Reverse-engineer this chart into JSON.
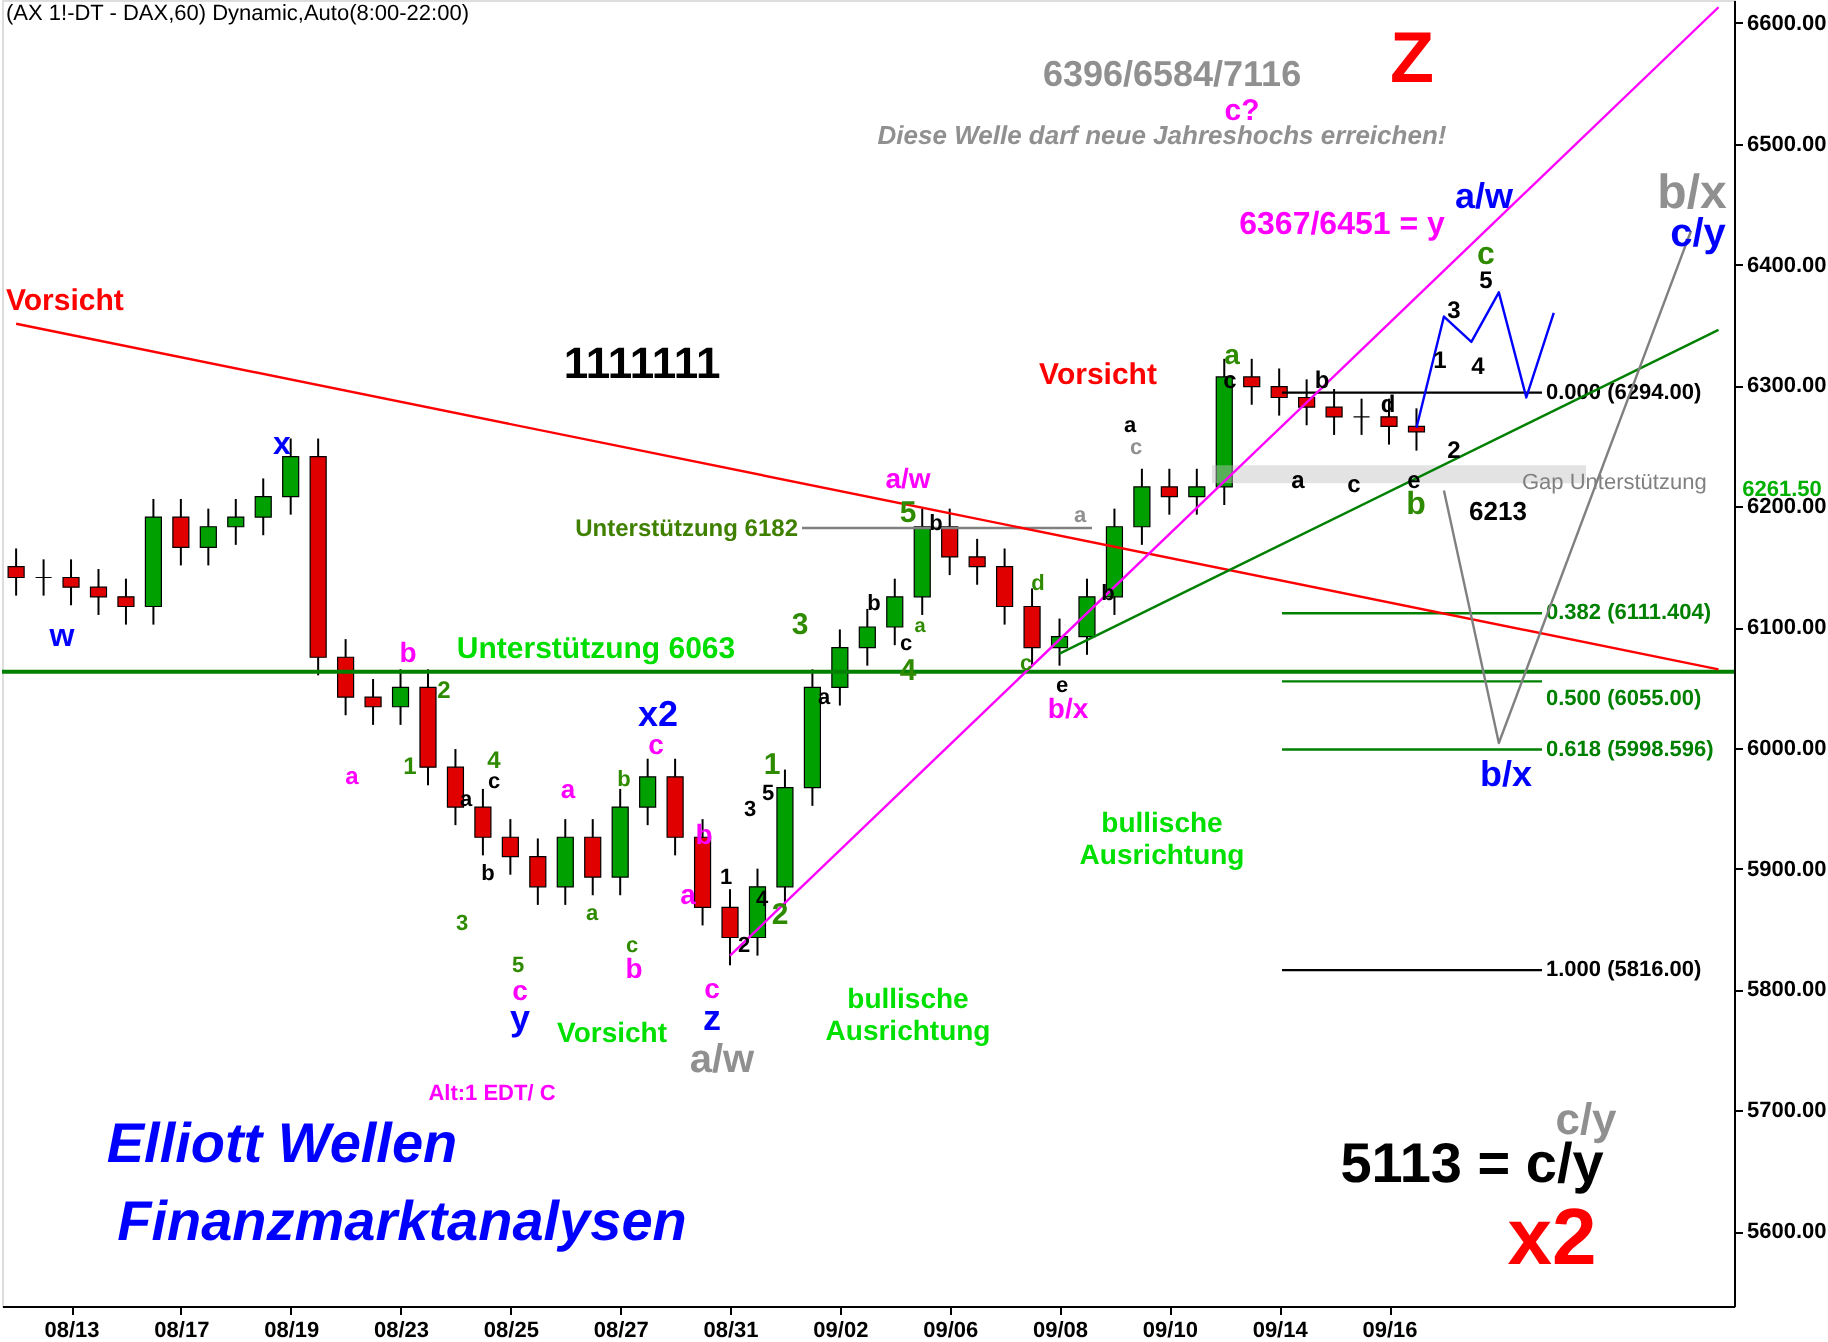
{
  "chart_data": {
    "type": "candlestick",
    "title": "(AX 1!-DT - DAX,60) Dynamic,Auto(8:00-22:00)",
    "categories": [
      null,
      null,
      "08/13",
      null,
      null,
      null,
      "08/17",
      null,
      null,
      null,
      "08/19",
      null,
      null,
      null,
      "08/23",
      null,
      null,
      null,
      "08/25",
      null,
      null,
      null,
      "08/27",
      null,
      null,
      null,
      "08/31",
      null,
      null,
      null,
      "09/02",
      null,
      null,
      null,
      "09/06",
      null,
      null,
      null,
      "09/08",
      null,
      null,
      null,
      "09/10",
      null,
      null,
      null,
      "09/14",
      null,
      null,
      null,
      "09/16",
      null,
      null,
      null,
      null,
      null,
      null,
      null,
      null,
      null,
      null,
      null,
      null
    ],
    "ohlc": [
      [
        6150,
        6165,
        6126,
        6141
      ],
      [
        6141,
        6156,
        6126,
        6141
      ],
      [
        6141,
        6156,
        6118,
        6133
      ],
      [
        6133,
        6148,
        6110,
        6125
      ],
      [
        6125,
        6140,
        6102,
        6117
      ],
      [
        6117,
        6206,
        6102,
        6191
      ],
      [
        6191,
        6206,
        6151,
        6166
      ],
      [
        6166,
        6198,
        6151,
        6183
      ],
      [
        6183,
        6206,
        6168,
        6191
      ],
      [
        6191,
        6223,
        6176,
        6208
      ],
      [
        6208,
        6256,
        6193,
        6241
      ],
      [
        6241,
        6256,
        6060,
        6075
      ],
      [
        6075,
        6090,
        6027,
        6042
      ],
      [
        6042,
        6057,
        6019,
        6034
      ],
      [
        6034,
        6065,
        6019,
        6050
      ],
      [
        6050,
        6065,
        5969,
        5984
      ],
      [
        5984,
        5999,
        5936,
        5951
      ],
      [
        5951,
        5966,
        5911,
        5926
      ],
      [
        5926,
        5941,
        5895,
        5910
      ],
      [
        5910,
        5925,
        5870,
        5885
      ],
      [
        5885,
        5941,
        5870,
        5926
      ],
      [
        5926,
        5941,
        5878,
        5893
      ],
      [
        5893,
        5966,
        5878,
        5951
      ],
      [
        5951,
        5991,
        5936,
        5976
      ],
      [
        5976,
        5991,
        5911,
        5926
      ],
      [
        5926,
        5941,
        5853,
        5868
      ],
      [
        5868,
        5883,
        5820,
        5843
      ],
      [
        5843,
        5900,
        5828,
        5885
      ],
      [
        5885,
        5982,
        5870,
        5967
      ],
      [
        5967,
        6065,
        5952,
        6050
      ],
      [
        6050,
        6098,
        6035,
        6083
      ],
      [
        6083,
        6115,
        6068,
        6100
      ],
      [
        6100,
        6140,
        6085,
        6125
      ],
      [
        6125,
        6198,
        6110,
        6183
      ],
      [
        6183,
        6198,
        6143,
        6158
      ],
      [
        6158,
        6173,
        6135,
        6150
      ],
      [
        6150,
        6165,
        6102,
        6117
      ],
      [
        6117,
        6132,
        6068,
        6083
      ],
      [
        6083,
        6107,
        6068,
        6092
      ],
      [
        6092,
        6140,
        6077,
        6125
      ],
      [
        6125,
        6198,
        6110,
        6183
      ],
      [
        6183,
        6231,
        6168,
        6216
      ],
      [
        6216,
        6231,
        6193,
        6208
      ],
      [
        6208,
        6231,
        6193,
        6216
      ],
      [
        6216,
        6322,
        6201,
        6307
      ],
      [
        6307,
        6322,
        6284,
        6299
      ],
      [
        6299,
        6314,
        6275,
        6290
      ],
      [
        6290,
        6305,
        6267,
        6282
      ],
      [
        6282,
        6297,
        6259,
        6274
      ],
      [
        6274,
        6289,
        6259,
        6274
      ],
      [
        6274,
        6289,
        6251,
        6266
      ],
      [
        6266,
        6281,
        6246,
        6261.5
      ],
      null,
      null,
      null,
      null,
      null,
      null,
      null,
      null,
      null,
      null,
      null
    ],
    "ylim": [
      5538,
      6619
    ],
    "yticks": [
      {
        "value": 5600,
        "label": "5600.00"
      },
      {
        "value": 5700,
        "label": "5700.00"
      },
      {
        "value": 5800,
        "label": "5800.00"
      },
      {
        "value": 5900,
        "label": "5900.00"
      },
      {
        "value": 6000,
        "label": "6000.00"
      },
      {
        "value": 6100,
        "label": "6100.00"
      },
      {
        "value": 6200,
        "label": "6200.00"
      },
      {
        "value": 6300,
        "label": "6300.00"
      },
      {
        "value": 6400,
        "label": "6400.00"
      },
      {
        "value": 6500,
        "label": "6500.00"
      },
      {
        "value": 6600,
        "label": "6600.00"
      }
    ],
    "series": [
      {
        "type": "line",
        "color": "#ff0000",
        "values": [
          6351,
          null,
          null,
          null,
          null,
          null,
          null,
          null,
          null,
          null,
          null,
          null,
          null,
          null,
          null,
          null,
          null,
          null,
          null,
          null,
          null,
          null,
          null,
          null,
          null,
          null,
          null,
          null,
          null,
          null,
          null,
          null,
          null,
          null,
          null,
          null,
          null,
          null,
          null,
          null,
          null,
          null,
          null,
          null,
          null,
          null,
          null,
          null,
          null,
          null,
          null,
          null,
          null,
          null,
          null,
          null,
          null,
          null,
          null,
          null,
          null,
          null,
          6065
        ]
      },
      {
        "type": "line",
        "color": "#ff00ff",
        "values": [
          null,
          null,
          null,
          null,
          null,
          null,
          null,
          null,
          null,
          null,
          null,
          null,
          null,
          null,
          null,
          null,
          null,
          null,
          null,
          null,
          null,
          null,
          null,
          null,
          null,
          null,
          5828,
          null,
          null,
          null,
          null,
          null,
          null,
          null,
          null,
          null,
          null,
          null,
          null,
          null,
          null,
          null,
          null,
          null,
          null,
          null,
          null,
          null,
          null,
          null,
          null,
          null,
          null,
          null,
          null,
          null,
          null,
          null,
          null,
          null,
          null,
          null,
          6613
        ]
      },
      {
        "type": "line",
        "color": "#008000",
        "values": [
          null,
          null,
          null,
          null,
          null,
          null,
          null,
          null,
          null,
          null,
          null,
          null,
          null,
          null,
          null,
          null,
          null,
          null,
          null,
          null,
          null,
          null,
          null,
          null,
          null,
          null,
          null,
          null,
          null,
          null,
          null,
          null,
          null,
          null,
          null,
          null,
          null,
          null,
          6078,
          null,
          null,
          null,
          null,
          null,
          null,
          null,
          null,
          null,
          null,
          null,
          null,
          null,
          null,
          null,
          null,
          null,
          null,
          null,
          null,
          null,
          null,
          null,
          6346
        ]
      },
      {
        "type": "line",
        "color": "#808080",
        "values": [
          null,
          null,
          null,
          null,
          null,
          null,
          null,
          null,
          null,
          null,
          null,
          null,
          null,
          null,
          null,
          null,
          null,
          null,
          null,
          null,
          null,
          null,
          null,
          null,
          null,
          null,
          null,
          null,
          null,
          null,
          null,
          null,
          null,
          null,
          null,
          null,
          null,
          null,
          null,
          null,
          null,
          null,
          null,
          null,
          null,
          null,
          null,
          null,
          null,
          null,
          null,
          null,
          6213,
          null,
          6004,
          null,
          null,
          null,
          null,
          null,
          null,
          6428,
          null
        ]
      },
      {
        "type": "line",
        "color": "#0000ff",
        "values": [
          null,
          null,
          null,
          null,
          null,
          null,
          null,
          null,
          null,
          null,
          null,
          null,
          null,
          null,
          null,
          null,
          null,
          null,
          null,
          null,
          null,
          null,
          null,
          null,
          null,
          null,
          null,
          null,
          null,
          null,
          null,
          null,
          null,
          null,
          null,
          null,
          null,
          null,
          null,
          null,
          null,
          null,
          null,
          null,
          null,
          null,
          null,
          null,
          null,
          null,
          null,
          6265,
          6357,
          6336,
          6377,
          6290,
          6360,
          null,
          null,
          null,
          null,
          null,
          null
        ]
      }
    ],
    "ref_lines": [
      {
        "axis": "y",
        "value": 6063,
        "label": "Unterstützung 6063",
        "color": "#008000"
      },
      {
        "axis": "y",
        "value": 6182,
        "label": "Unterstützung 6182",
        "color": "#808080"
      },
      {
        "axis": "y",
        "value": 6294,
        "label": "0.000 (6294.00)",
        "color": "#000000"
      },
      {
        "axis": "y",
        "value": 6111.404,
        "label": "0.382 (6111.404)",
        "color": "#008000"
      },
      {
        "axis": "y",
        "value": 6055,
        "label": "0.500 (6055.00)",
        "color": "#008000"
      },
      {
        "axis": "y",
        "value": 5998.596,
        "label": "0.618 (5998.596)",
        "color": "#008000"
      },
      {
        "axis": "y",
        "value": 5816,
        "label": "1.000 (5816.00)",
        "color": "#000000"
      }
    ],
    "bands": [
      {
        "axis": "y",
        "from": 6219,
        "to": 6234,
        "label": "Gap Unterstützung",
        "color": "#c0c0c0"
      }
    ],
    "annotations": [
      "Elliott Wellen",
      "Finanzmarktanalysen",
      "Alt:1 EDT/ C",
      "6396/6584/7116",
      "c?",
      "Diese Welle darf neue Jahreshochs  erreichen!",
      "Z",
      "Vorsicht",
      "Vorsicht",
      "1111111",
      "w",
      "x",
      "b",
      "2",
      "a",
      "1",
      "a",
      "4",
      "c",
      "b",
      "3",
      "5",
      "c",
      "y",
      "a",
      "a",
      "b",
      "x2",
      "c",
      "b",
      "a",
      "c",
      "b",
      "1",
      "2",
      "3",
      "5",
      "4",
      "1",
      "2",
      "c",
      "z",
      "a/w",
      "3",
      "a",
      "4",
      "c",
      "b",
      "5",
      "a/w",
      "a",
      "b",
      "d",
      "c",
      "a",
      "b",
      "e",
      "b/x",
      "a",
      "c",
      "a",
      "c",
      "b",
      "a",
      "c",
      "d",
      "e",
      "b",
      "1",
      "2",
      "3",
      "4",
      "5",
      "c",
      "6367/6451 = y",
      "a/w",
      "b/x",
      "c/y",
      "b/x",
      "6213",
      "Vorsicht",
      "bullische\nAusrichtung",
      "bullische\nAusrichtung",
      "c/y",
      "5113 = c/y",
      "x2",
      "6261.50"
    ]
  }
}
